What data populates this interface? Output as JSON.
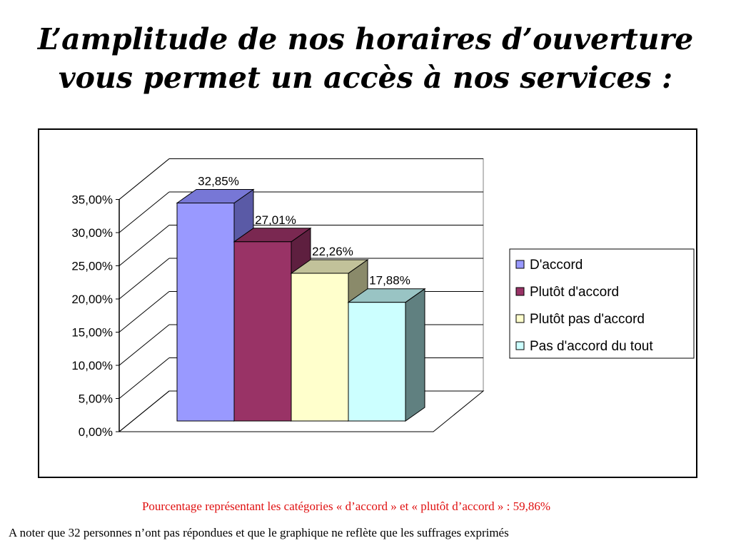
{
  "slide": {
    "title_line1": "L’amplitude de nos horaires d’ouverture",
    "title_line2": "vous permet un accès à nos services :",
    "note_red": "Pourcentage représentant les catégories « d’accord » et « plutôt d’accord » : 59,86%",
    "note_black": "A noter que 32 personnes n’ont pas répondues et que le graphique ne reflète que les suffrages exprimés"
  },
  "chart_data": {
    "type": "bar",
    "style": "3d-clustered-column",
    "title": "",
    "xlabel": "",
    "ylabel": "",
    "ylim": [
      0,
      35
    ],
    "yticks": [
      0,
      5,
      10,
      15,
      20,
      25,
      30,
      35
    ],
    "ytick_labels": [
      "0,00%",
      "5,00%",
      "10,00%",
      "15,00%",
      "20,00%",
      "25,00%",
      "30,00%",
      "35,00%"
    ],
    "grid": true,
    "legend_position": "right",
    "series": [
      {
        "name": "D'accord",
        "value": 32.85,
        "label": "32,85%",
        "color": "#9999ff",
        "side": "#5a5aa6",
        "top": "#7777d6"
      },
      {
        "name": "Plutôt d'accord",
        "value": 27.01,
        "label": "27,01%",
        "color": "#993366",
        "side": "#5e1f3f",
        "top": "#7a2851"
      },
      {
        "name": "Plutôt pas d'accord",
        "value": 22.26,
        "label": "22,26%",
        "color": "#ffffcc",
        "side": "#8a8a6a",
        "top": "#c2c29a"
      },
      {
        "name": "Pas d'accord du tout",
        "value": 17.88,
        "label": "17,88%",
        "color": "#ccffff",
        "side": "#608080",
        "top": "#99c4c4"
      }
    ]
  }
}
